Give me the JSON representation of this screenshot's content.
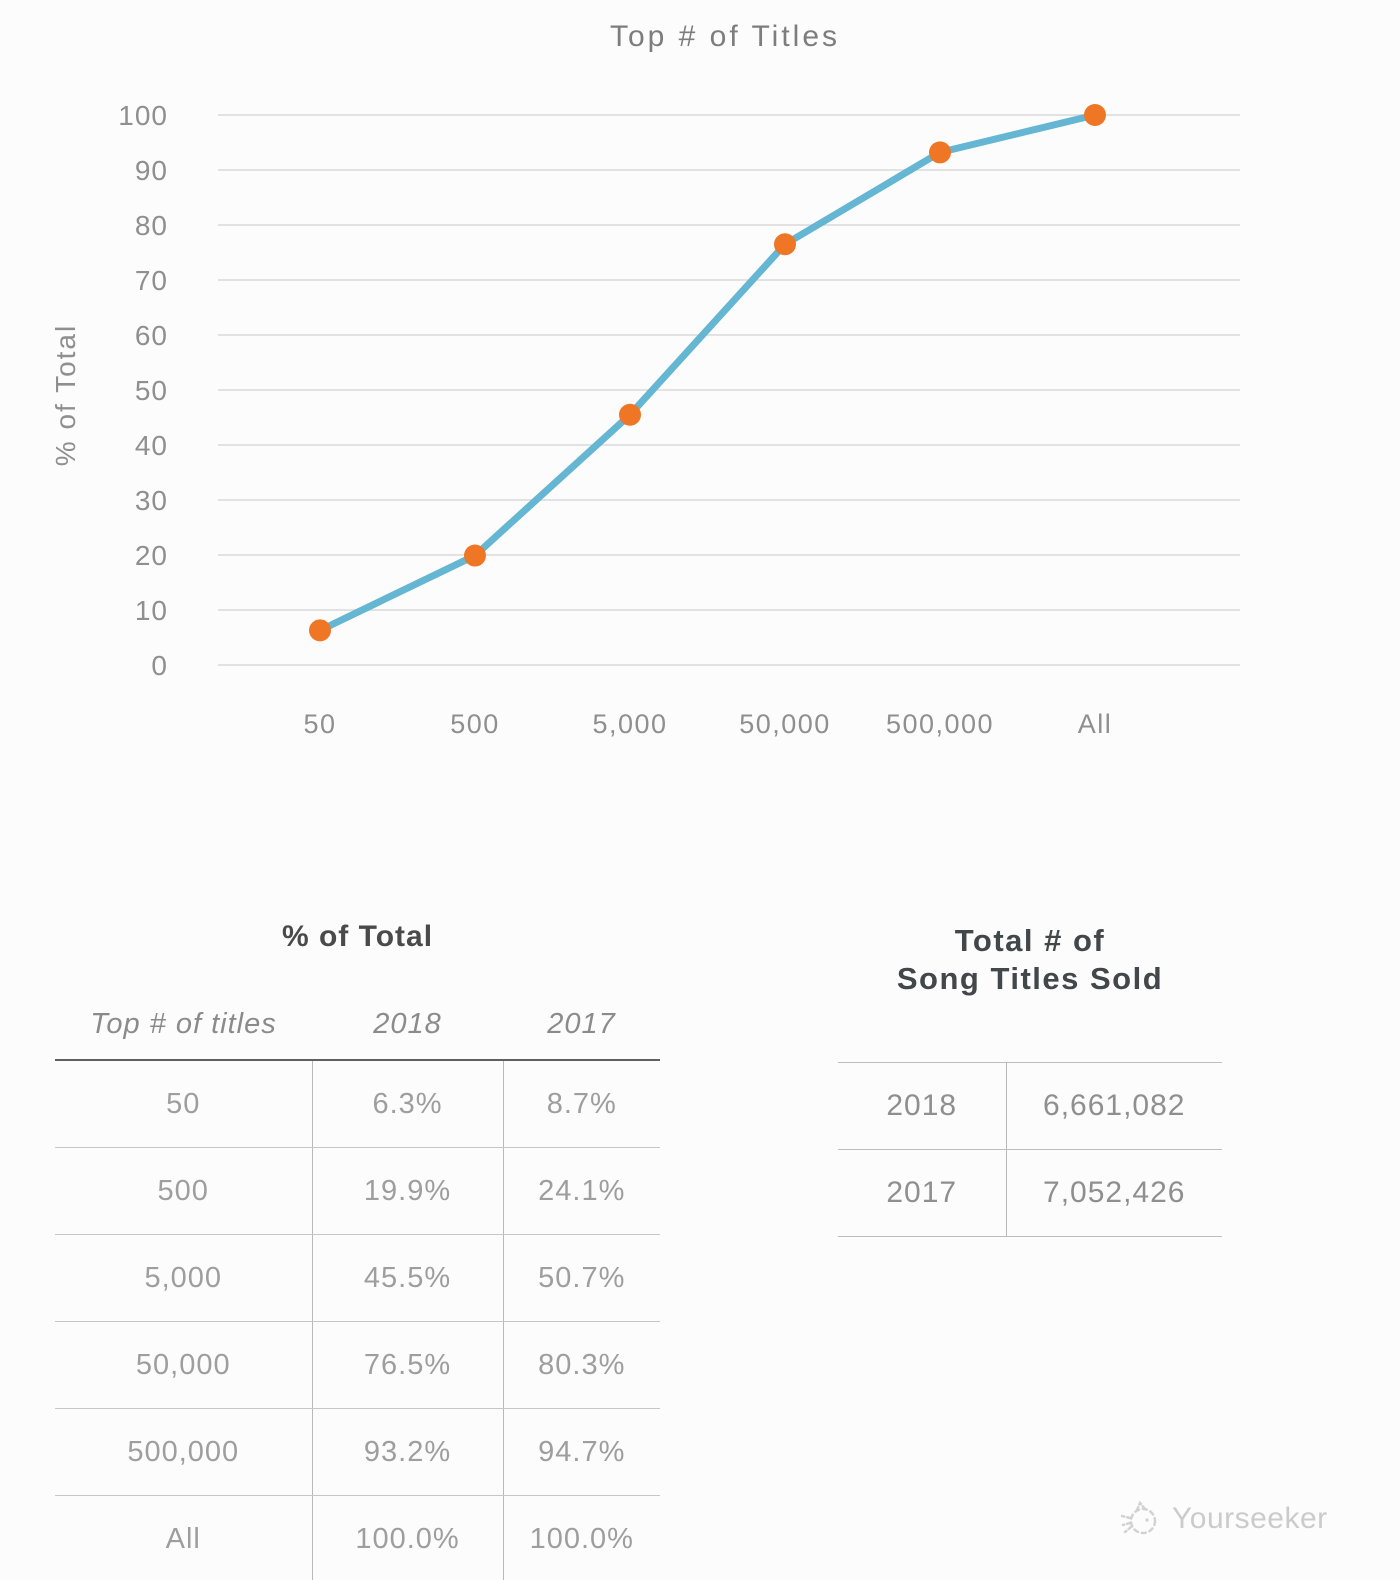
{
  "chart_data": {
    "type": "line",
    "title": "Top # of Titles",
    "ylabel": "% of Total",
    "xlabel": "",
    "categories": [
      "50",
      "500",
      "5,000",
      "50,000",
      "500,000",
      "All"
    ],
    "series": [
      {
        "name": "2018",
        "values": [
          6.3,
          19.9,
          45.5,
          76.5,
          93.2,
          100.0
        ]
      }
    ],
    "ylim": [
      0,
      100
    ],
    "ytick_step": 10,
    "grid": true,
    "legend": "none",
    "line_color": "#64b6d3",
    "marker_color": "#ee7625",
    "marker_radius": 11
  },
  "pct_table": {
    "title": "% of Total",
    "columns": [
      "Top # of titles",
      "2018",
      "2017"
    ],
    "rows": [
      [
        "50",
        "6.3%",
        "8.7%"
      ],
      [
        "500",
        "19.9%",
        "24.1%"
      ],
      [
        "5,000",
        "45.5%",
        "50.7%"
      ],
      [
        "50,000",
        "76.5%",
        "80.3%"
      ],
      [
        "500,000",
        "93.2%",
        "94.7%"
      ],
      [
        "All",
        "100.0%",
        "100.0%"
      ]
    ]
  },
  "totals_table": {
    "title_line1": "Total # of",
    "title_line2": "Song Titles Sold",
    "rows": [
      [
        "2018",
        "6,661,082"
      ],
      [
        "2017",
        "7,052,426"
      ]
    ]
  },
  "watermark": {
    "label": "Yourseeker"
  }
}
